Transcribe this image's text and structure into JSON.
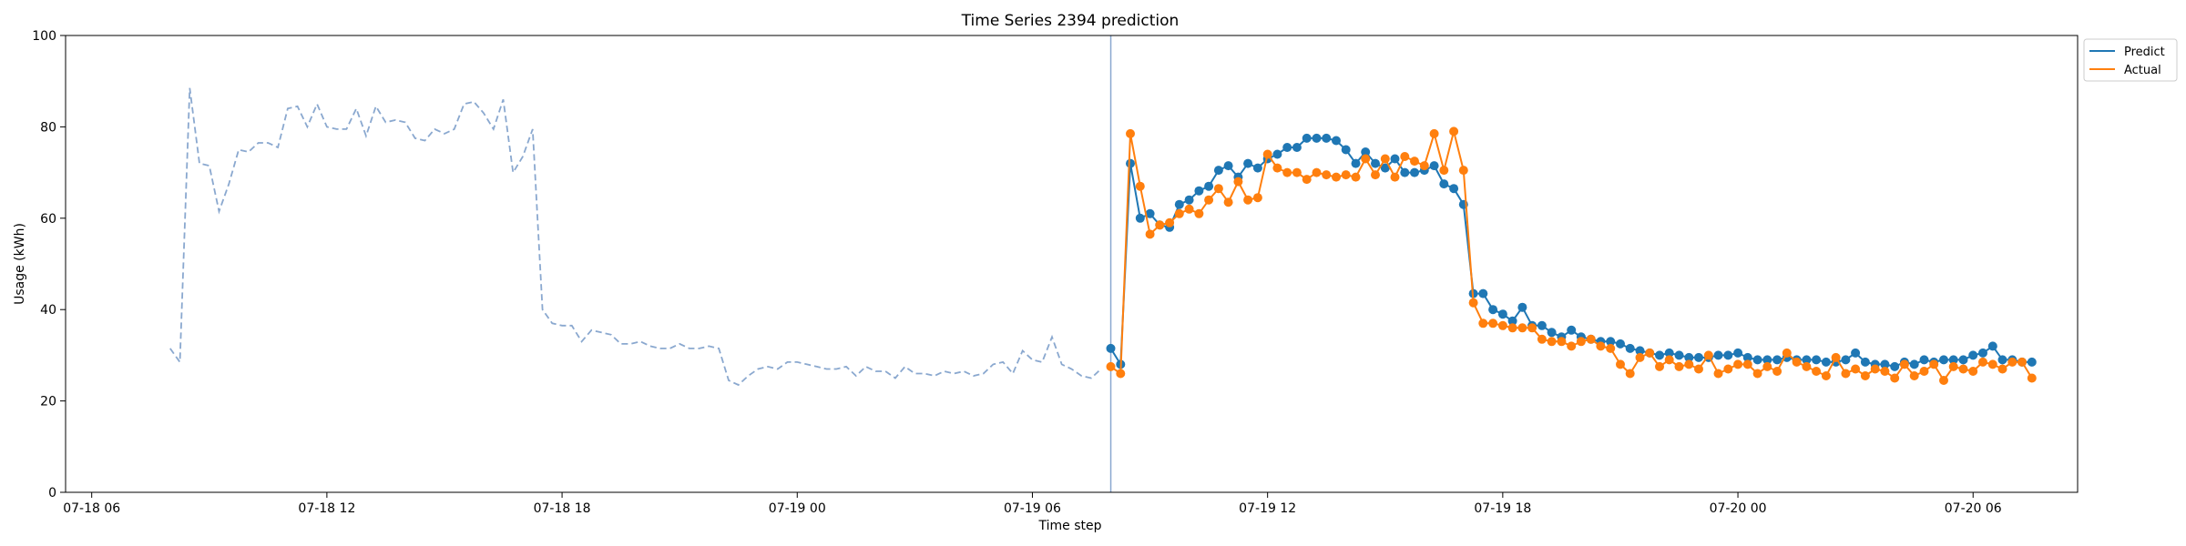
{
  "chart_data": {
    "type": "line",
    "title": "Time Series 2394 prediction",
    "xlabel": "Time step",
    "ylabel": "Usage (kWh)",
    "ylim": [
      0,
      100
    ],
    "xlim": [
      "2024-07-18T05:20",
      "2024-07-20T08:40"
    ],
    "x_ticks": [
      {
        "t": "2024-07-18T06:00",
        "label": "07-18 06"
      },
      {
        "t": "2024-07-18T12:00",
        "label": "07-18 12"
      },
      {
        "t": "2024-07-18T18:00",
        "label": "07-18 18"
      },
      {
        "t": "2024-07-19T00:00",
        "label": "07-19 00"
      },
      {
        "t": "2024-07-19T06:00",
        "label": "07-19 06"
      },
      {
        "t": "2024-07-19T12:00",
        "label": "07-19 12"
      },
      {
        "t": "2024-07-19T18:00",
        "label": "07-19 18"
      },
      {
        "t": "2024-07-20T00:00",
        "label": "07-20 00"
      },
      {
        "t": "2024-07-20T06:00",
        "label": "07-20 06"
      }
    ],
    "y_ticks": [
      0,
      20,
      40,
      60,
      80,
      100
    ],
    "legend_position": "top-right (outside plot)",
    "history_color": "#8aa8cf",
    "forecast_start": "2024-07-19T08:00",
    "history": {
      "start": "2024-07-18T08:00",
      "step_minutes": 15,
      "values": [
        31.5,
        28.5,
        88.5,
        72,
        71.5,
        61.5,
        67.5,
        75,
        74.5,
        76.5,
        76.5,
        75.5,
        84,
        84.5,
        80,
        85,
        80,
        79.5,
        79.5,
        84,
        78,
        84.5,
        81,
        81.5,
        81,
        77.5,
        77,
        79.5,
        78.5,
        79.5,
        85,
        85.5,
        83,
        79.5,
        86,
        70,
        73.5,
        79.5,
        40,
        37,
        36.5,
        36.5,
        33,
        35.5,
        35,
        34.5,
        32.5,
        32.5,
        33,
        32,
        31.5,
        31.5,
        32.5,
        31.5,
        31.5,
        32,
        31.5,
        24.5,
        23.5,
        25.5,
        27,
        27.5,
        27,
        28.5,
        28.5,
        28,
        27.5,
        27,
        27,
        27.5,
        25.5,
        27.5,
        26.5,
        26.5,
        25,
        27.5,
        26,
        26,
        25.5,
        26.5,
        26,
        26.5,
        25.5,
        26,
        28,
        28.5,
        26,
        31,
        29,
        28.5,
        34,
        28,
        27,
        25.5,
        25,
        27
      ]
    },
    "series": [
      {
        "name": "Predict",
        "color": "#1f77b4",
        "start": "2024-07-19T08:00",
        "step_minutes": 15,
        "values": [
          31.5,
          28,
          72,
          60,
          61,
          58.5,
          58,
          63,
          64,
          66,
          67,
          70.5,
          71.5,
          69,
          72,
          71,
          73,
          74,
          75.5,
          75.5,
          77.5,
          77.5,
          77.5,
          77,
          75,
          72,
          74.5,
          72,
          71,
          73,
          70,
          70,
          70.5,
          71.5,
          67.5,
          66.5,
          63,
          43.5,
          43.5,
          40,
          39,
          37.5,
          40.5,
          36.5,
          36.5,
          35,
          34,
          35.5,
          34,
          33.5,
          33,
          33,
          32.5,
          31.5,
          31,
          30.5,
          30,
          30.5,
          30,
          29.5,
          29.5,
          29.5,
          30,
          30,
          30.5,
          29.5,
          29,
          29,
          29,
          29.5,
          29,
          29,
          29,
          28.5,
          28.5,
          29,
          30.5,
          28.5,
          28,
          28,
          27.5,
          28.5,
          28,
          29,
          28.5,
          29,
          29,
          29,
          30,
          30.5,
          32,
          29,
          29,
          28.5,
          28.5
        ]
      },
      {
        "name": "Actual",
        "color": "#ff7f0e",
        "start": "2024-07-19T08:00",
        "step_minutes": 15,
        "values": [
          27.5,
          26,
          78.5,
          67,
          56.5,
          58.5,
          59,
          61,
          62,
          61,
          64,
          66.5,
          63.5,
          68,
          64,
          64.5,
          74,
          71,
          70,
          70,
          68.5,
          70,
          69.5,
          69,
          69.5,
          69,
          73,
          69.5,
          73,
          69,
          73.5,
          72.5,
          71.5,
          78.5,
          70.5,
          79,
          70.5,
          41.5,
          37,
          37,
          36.5,
          36,
          36,
          36,
          33.5,
          33,
          33,
          32,
          33,
          33.5,
          32,
          31.5,
          28,
          26,
          29.5,
          30.5,
          27.5,
          29,
          27.5,
          28,
          27,
          30,
          26,
          27,
          28,
          28,
          26,
          27.5,
          26.5,
          30.5,
          28.5,
          27.5,
          26.5,
          25.5,
          29.5,
          26,
          27,
          25.5,
          27,
          26.5,
          25,
          28,
          25.5,
          26.5,
          28,
          24.5,
          27.5,
          27,
          26.5,
          28.5,
          28,
          27,
          28.5,
          28.5,
          25
        ]
      }
    ]
  }
}
